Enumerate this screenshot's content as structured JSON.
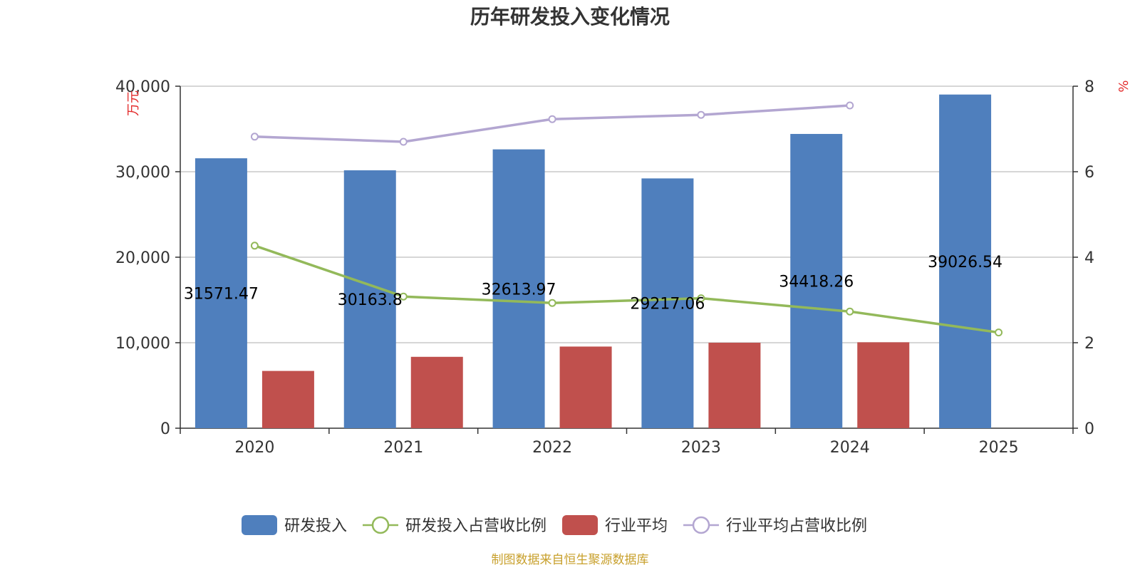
{
  "chart_data": {
    "type": "bar",
    "title": "历年研发投入变化情况",
    "categories": [
      "2020",
      "2021",
      "2022",
      "2023",
      "2024",
      "2025"
    ],
    "y_left": {
      "unit": "万元",
      "ylim": [
        0,
        40000
      ],
      "ticks": [
        "0",
        "10,000",
        "20,000",
        "30,000",
        "40,000"
      ]
    },
    "y_right": {
      "unit": "%",
      "ylim": [
        0,
        8
      ],
      "ticks": [
        "0",
        "2",
        "4",
        "6",
        "8"
      ]
    },
    "series": [
      {
        "name": "研发投入",
        "kind": "bar",
        "axis": "left",
        "color": "#4f7fbd",
        "values": [
          31571.47,
          30163.8,
          32613.97,
          29217.06,
          34418.26,
          39026.54
        ],
        "labels": [
          "31571.47",
          "30163.8",
          "32613.97",
          "29217.06",
          "34418.26",
          "39026.54"
        ]
      },
      {
        "name": "研发投入占营收比例",
        "kind": "line",
        "axis": "right",
        "color": "#93b95a",
        "values": [
          4.27,
          3.08,
          2.93,
          3.04,
          2.73,
          2.24
        ]
      },
      {
        "name": "行业平均",
        "kind": "bar",
        "axis": "left",
        "color": "#c0504d",
        "values": [
          6700,
          8350,
          9550,
          10000,
          10050,
          null
        ]
      },
      {
        "name": "行业平均占营收比例",
        "kind": "line",
        "axis": "right",
        "color": "#b3a6d1",
        "values": [
          6.82,
          6.7,
          7.23,
          7.33,
          7.55,
          null
        ]
      }
    ],
    "grid": true,
    "legend": "bottom"
  },
  "source": "制图数据来自恒生聚源数据库"
}
